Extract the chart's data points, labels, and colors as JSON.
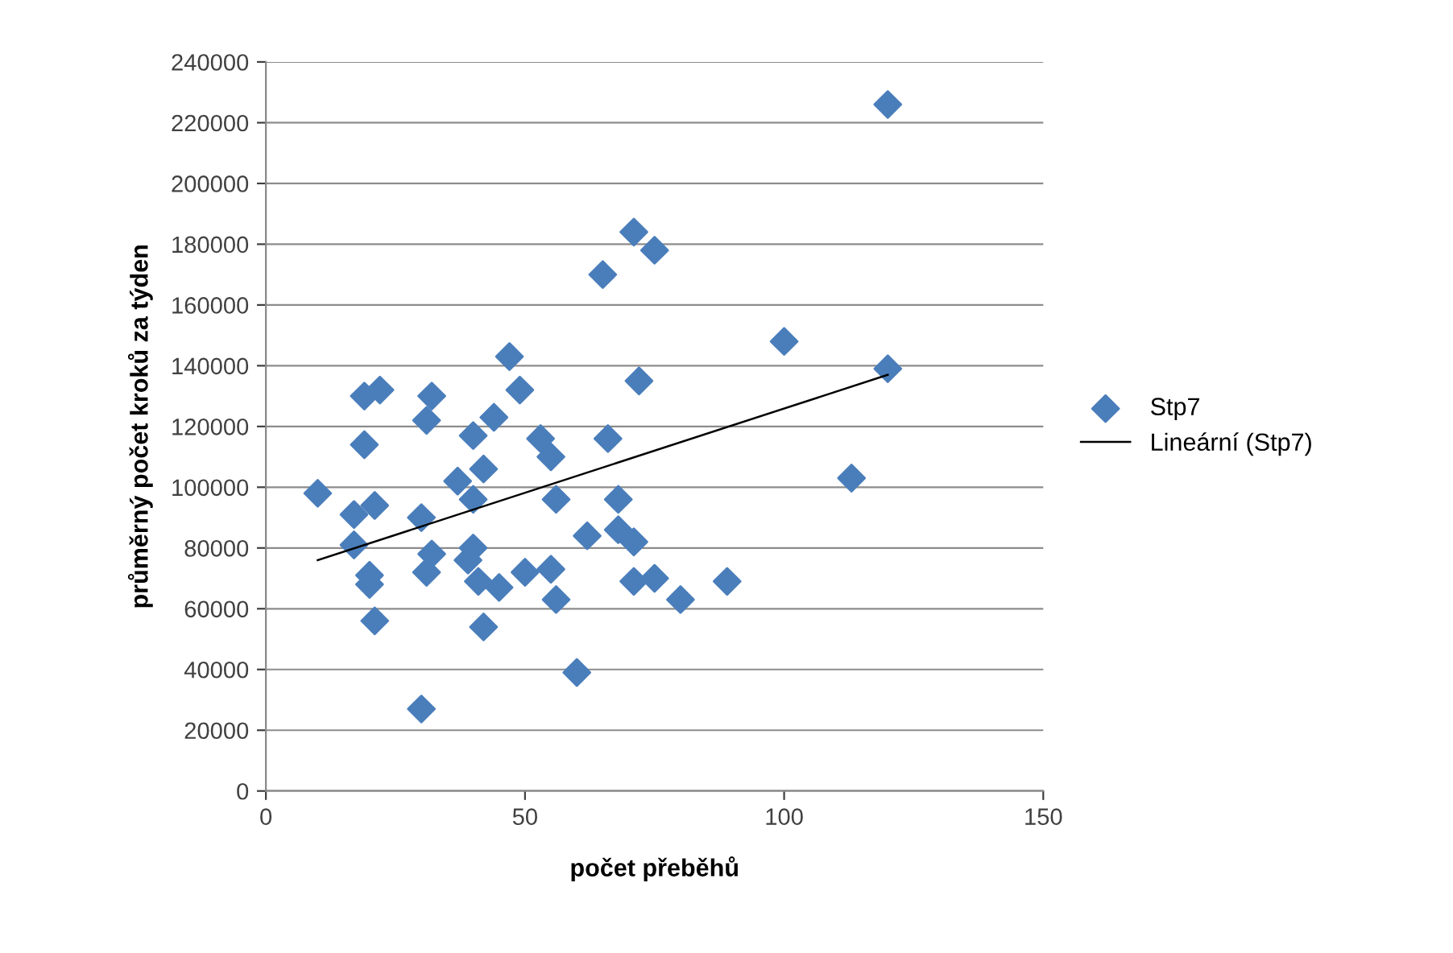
{
  "chart_data": {
    "type": "scatter",
    "xlabel": "počet přeběhů",
    "ylabel": "průměrný počet kroků za týden",
    "xlim": [
      0,
      150
    ],
    "xticks": [
      0,
      50,
      100,
      150
    ],
    "ylim": [
      0,
      240000
    ],
    "yticks": [
      0,
      20000,
      40000,
      60000,
      80000,
      100000,
      120000,
      140000,
      160000,
      180000,
      200000,
      220000,
      240000
    ],
    "grid": "y",
    "legend": "right",
    "marker": "diamond",
    "series": [
      {
        "name": "Stp7",
        "color": "#4a7ebb",
        "x": [
          10,
          17,
          17,
          19,
          22,
          19,
          21,
          20,
          20,
          21,
          30,
          32,
          31,
          31,
          32,
          30,
          37,
          40,
          42,
          40,
          39,
          40,
          41,
          42,
          44,
          45,
          47,
          49,
          50,
          53,
          55,
          55,
          56,
          56,
          60,
          62,
          65,
          66,
          68,
          68,
          71,
          71,
          72,
          75,
          71,
          75,
          80,
          89,
          100,
          113,
          120,
          120
        ],
        "values": [
          98000,
          91000,
          81000,
          130000,
          132000,
          114000,
          94000,
          71000,
          68000,
          56000,
          90000,
          130000,
          122000,
          72000,
          78000,
          27000,
          102000,
          117000,
          106000,
          96000,
          76000,
          80000,
          69000,
          54000,
          123000,
          67000,
          143000,
          132000,
          72000,
          116000,
          110000,
          73000,
          96000,
          63000,
          39000,
          84000,
          170000,
          116000,
          96000,
          86000,
          82000,
          184000,
          135000,
          178000,
          69000,
          70000,
          63000,
          69000,
          148000,
          103000,
          226000,
          139000
        ]
      },
      {
        "name": "Lineární (Stp7)",
        "color": "#000000",
        "type": "line",
        "marker": "none",
        "line_style": "solid",
        "x": [
          10,
          120
        ],
        "values": [
          76000,
          137000
        ]
      }
    ]
  }
}
